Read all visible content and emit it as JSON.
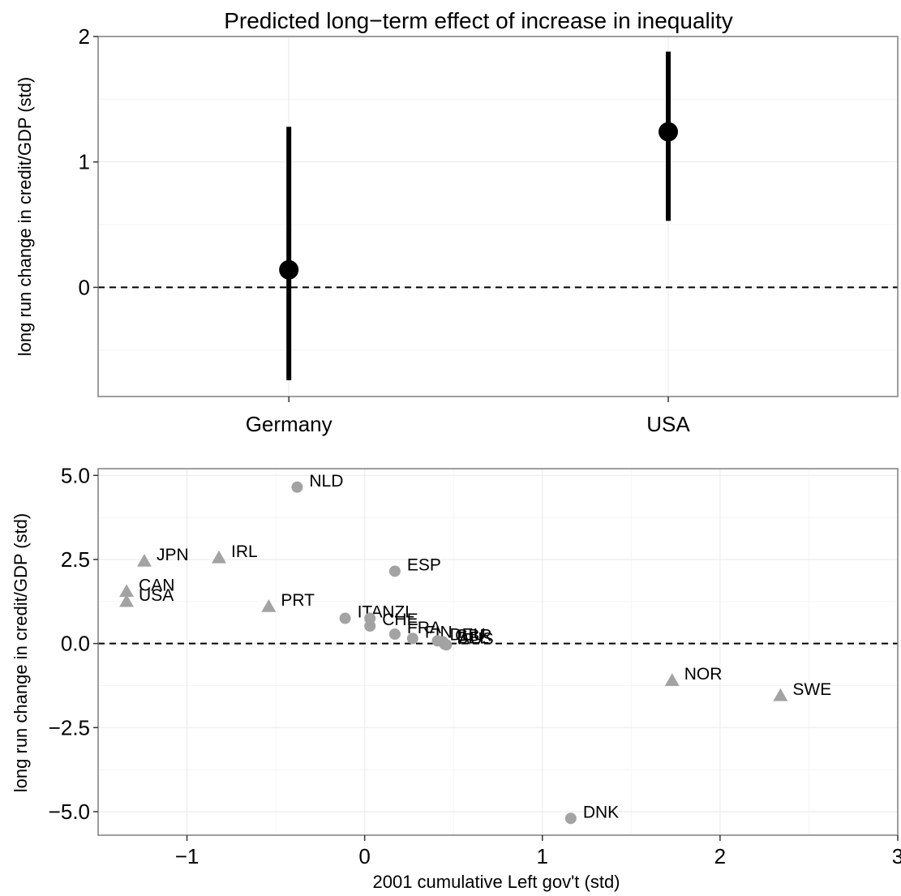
{
  "chart_data": [
    {
      "type": "point-range",
      "title": "Predicted long−term effect of increase in inequality",
      "xlabel": "",
      "ylabel": "long run change in credit/GDP (std)",
      "categories": [
        "Germany",
        "USA"
      ],
      "values": [
        0.14,
        1.24
      ],
      "lower": [
        -0.74,
        0.53
      ],
      "upper": [
        1.28,
        1.88
      ],
      "ylim": [
        -0.87,
        2.0
      ],
      "yticks": [
        0,
        1,
        2
      ],
      "ytick_labels": [
        "0",
        "1",
        "2"
      ],
      "reference_line": 0
    },
    {
      "type": "scatter",
      "title": "",
      "xlabel": "2001 cumulative Left gov't (std)",
      "ylabel": "long run change in credit/GDP (std)",
      "xlim": [
        -1.5,
        3.0
      ],
      "ylim": [
        -5.7,
        5.2
      ],
      "xticks": [
        -1,
        0,
        1,
        2,
        3
      ],
      "xtick_labels": [
        "−1",
        "0",
        "1",
        "2",
        "3"
      ],
      "yticks": [
        -5.0,
        -2.5,
        0.0,
        2.5,
        5.0
      ],
      "ytick_labels": [
        "−5.0",
        "−2.5",
        "0.0",
        "2.5",
        "5.0"
      ],
      "reference_line": 0,
      "points": [
        {
          "label": "NLD",
          "x": -0.38,
          "y": 4.65,
          "shape": "circle"
        },
        {
          "label": "JPN",
          "x": -1.24,
          "y": 2.45,
          "shape": "triangle"
        },
        {
          "label": "IRL",
          "x": -0.82,
          "y": 2.55,
          "shape": "triangle"
        },
        {
          "label": "ESP",
          "x": 0.17,
          "y": 2.15,
          "shape": "circle"
        },
        {
          "label": "CAN",
          "x": -1.34,
          "y": 1.55,
          "shape": "triangle"
        },
        {
          "label": "USA",
          "x": -1.34,
          "y": 1.25,
          "shape": "triangle"
        },
        {
          "label": "PRT",
          "x": -0.54,
          "y": 1.1,
          "shape": "triangle"
        },
        {
          "label": "ITA",
          "x": -0.11,
          "y": 0.75,
          "shape": "circle"
        },
        {
          "label": "NZL",
          "x": 0.03,
          "y": 0.75,
          "shape": "circle"
        },
        {
          "label": "CHE",
          "x": 0.03,
          "y": 0.52,
          "shape": "circle"
        },
        {
          "label": "FRA",
          "x": 0.17,
          "y": 0.28,
          "shape": "circle"
        },
        {
          "label": "FIN",
          "x": 0.27,
          "y": 0.15,
          "shape": "circle"
        },
        {
          "label": "DEU",
          "x": 0.41,
          "y": 0.08,
          "shape": "circle"
        },
        {
          "label": "GBR",
          "x": 0.44,
          "y": 0.05,
          "shape": "circle"
        },
        {
          "label": "BEL",
          "x": 0.45,
          "y": -0.02,
          "shape": "circle"
        },
        {
          "label": "AUS",
          "x": 0.46,
          "y": -0.04,
          "shape": "circle"
        },
        {
          "label": "NOR",
          "x": 1.73,
          "y": -1.1,
          "shape": "triangle"
        },
        {
          "label": "SWE",
          "x": 2.34,
          "y": -1.55,
          "shape": "triangle"
        },
        {
          "label": "DNK",
          "x": 1.16,
          "y": -5.2,
          "shape": "circle"
        }
      ]
    }
  ]
}
